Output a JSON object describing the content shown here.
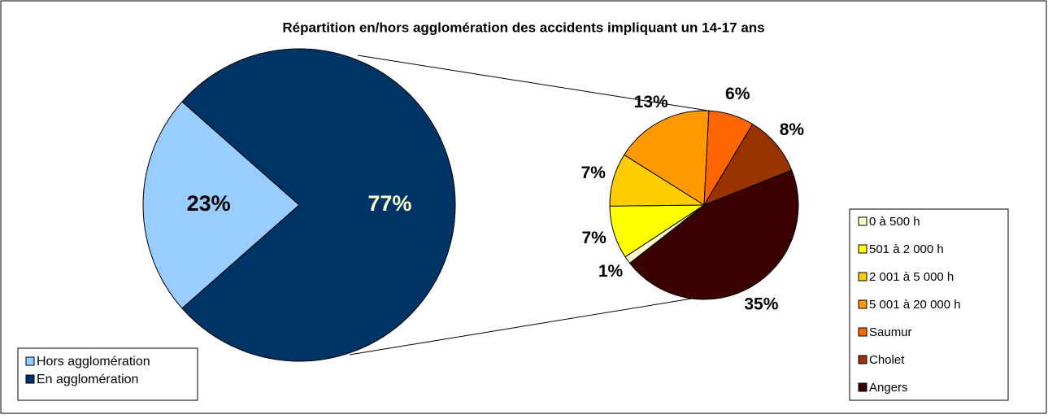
{
  "chart_data": [
    {
      "type": "pie",
      "title": "Répartition en/hors agglomération des accidents impliquant un 14-17 ans",
      "categories": [
        "Hors agglomération",
        "En agglomération"
      ],
      "values": [
        23,
        77
      ],
      "value_labels": [
        "23%",
        "77%"
      ],
      "colors": [
        "#99ccff",
        "#003366"
      ],
      "legend": "bottom-left"
    },
    {
      "type": "pie",
      "categories": [
        "0 à 500 h",
        "501 à 2 000 h",
        "2 001 à 5 000 h",
        "5 001 à 20 000 h",
        "Saumur",
        "Cholet",
        "Angers"
      ],
      "values": [
        1,
        7,
        7,
        13,
        6,
        8,
        35
      ],
      "value_labels": [
        "1%",
        "7%",
        "7%",
        "13%",
        "6%",
        "8%",
        "35%"
      ],
      "colors": [
        "#ffffcc",
        "#ffff00",
        "#ffcc00",
        "#ff9900",
        "#ff6600",
        "#993300",
        "#3a0000"
      ],
      "legend": "right"
    }
  ]
}
